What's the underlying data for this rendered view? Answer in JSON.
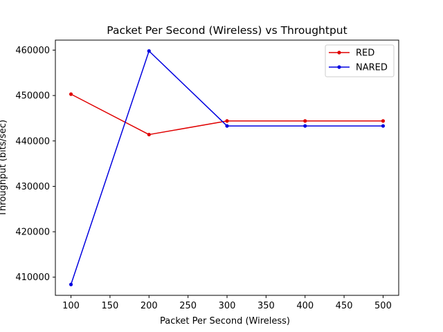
{
  "chart_data": {
    "type": "line",
    "title": "Packet Per Second (Wireless)  vs Throughtput",
    "xlabel": "Packet Per Second (Wireless)",
    "ylabel": "Throughput (bits/sec)",
    "x": [
      100,
      200,
      300,
      400,
      500
    ],
    "xlim": [
      80,
      520
    ],
    "ylim": [
      406000,
      462200
    ],
    "xticks": [
      100,
      150,
      200,
      250,
      300,
      350,
      400,
      450,
      500
    ],
    "yticks": [
      410000,
      420000,
      430000,
      440000,
      450000,
      460000
    ],
    "grid": false,
    "legend_position": "top-right",
    "series": [
      {
        "name": "RED",
        "color": "#e00000",
        "values": [
          450300,
          441400,
          444400,
          444400,
          444400
        ]
      },
      {
        "name": "NARED",
        "color": "#0000e0",
        "values": [
          408400,
          459800,
          443300,
          443300,
          443300
        ]
      }
    ]
  }
}
